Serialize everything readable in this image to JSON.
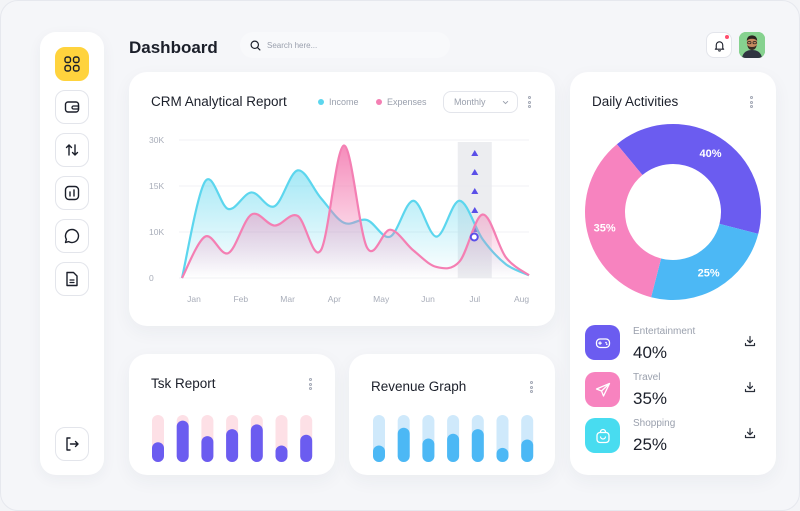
{
  "header": {
    "title": "Dashboard",
    "search_placeholder": "Search here..."
  },
  "sidebar": {
    "items": [
      {
        "name": "grid-icon",
        "active": true
      },
      {
        "name": "wallet-icon",
        "active": false
      },
      {
        "name": "transfer-icon",
        "active": false
      },
      {
        "name": "report-icon",
        "active": false
      },
      {
        "name": "chat-icon",
        "active": false
      },
      {
        "name": "document-icon",
        "active": false
      }
    ],
    "logout": "logout-icon"
  },
  "colors": {
    "accent": "#ffd33d",
    "income": "#5cd6ee",
    "expenses": "#f47fb3",
    "purple": "#6b5cf0",
    "pink": "#f783bf",
    "blue": "#4cb8f5",
    "cyan": "#48dcf0"
  },
  "crm": {
    "title": "CRM Analytical Report",
    "legend": {
      "income": "Income",
      "expenses": "Expenses"
    },
    "period": "Monthly"
  },
  "chart_data": [
    {
      "type": "area",
      "title": "CRM Analytical Report",
      "categories": [
        "Jan",
        "Feb",
        "Mar",
        "Apr",
        "May",
        "Jun",
        "Jul",
        "Aug"
      ],
      "y_ticks": [
        "30K",
        "15K",
        "10K",
        "0"
      ],
      "ylim": [
        0,
        30000
      ],
      "series": [
        {
          "name": "Income",
          "color": "#5cd6ee",
          "values": [
            12000,
            13000,
            17000,
            9000,
            5000,
            11000,
            6000,
            3000
          ]
        },
        {
          "name": "Expenses",
          "color": "#f47fb3",
          "values": [
            4000,
            11000,
            7000,
            29000,
            8000,
            3000,
            13000,
            3000
          ]
        }
      ],
      "highlight_category": "Jul",
      "legend": "top"
    },
    {
      "type": "bar",
      "title": "Tsk Report",
      "series": [
        {
          "name": "",
          "values": [
            0.42,
            0.88,
            0.55,
            0.7,
            0.8,
            0.35,
            0.58
          ]
        }
      ],
      "max": 1
    },
    {
      "type": "bar",
      "title": "Revenue Graph",
      "series": [
        {
          "name": "",
          "values": [
            0.35,
            0.73,
            0.5,
            0.6,
            0.7,
            0.3,
            0.48
          ]
        }
      ],
      "max": 1
    },
    {
      "type": "pie",
      "title": "Daily Activities",
      "labels": [
        "40%",
        "25%",
        "35%"
      ],
      "values": [
        40,
        25,
        35
      ],
      "colors": [
        "#6b5cf0",
        "#4cb8f5",
        "#f783bf"
      ],
      "donut": true
    }
  ],
  "tsk": {
    "title": "Tsk Report"
  },
  "revenue": {
    "title": "Revenue Graph"
  },
  "daily": {
    "title": "Daily Activities",
    "items": [
      {
        "label": "Entertainment",
        "value": "40%",
        "icon": "gamepad-icon",
        "color": "#6b5cf0"
      },
      {
        "label": "Travel",
        "value": "35%",
        "icon": "send-icon",
        "color": "#f783bf"
      },
      {
        "label": "Shopping",
        "value": "25%",
        "icon": "shopping-bag-icon",
        "color": "#48dcf0"
      }
    ]
  }
}
